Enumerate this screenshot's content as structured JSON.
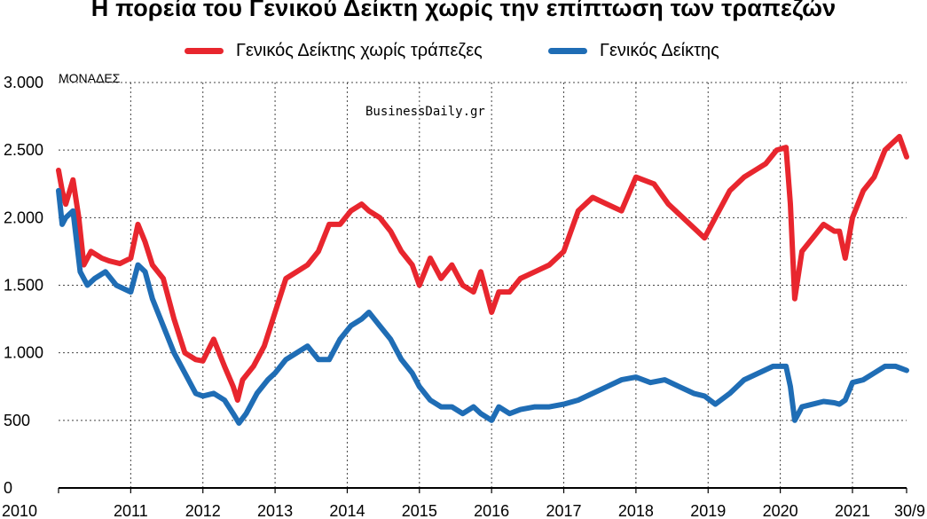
{
  "title": "Η πορεία του Γενικού Δείκτη χωρίς την επίπτωση των τραπεζών",
  "legend": [
    {
      "label": "Γενικός Δείκτης χωρίς τράπεζες",
      "color": "#e8262e"
    },
    {
      "label": "Γενικός Δείκτης",
      "color": "#1f6db5"
    }
  ],
  "watermark": "BusinessDaily.gr",
  "chart_data": {
    "type": "line",
    "title": "Η πορεία του Γενικού Δείκτη χωρίς την επίπτωση των τραπεζών",
    "ylabel": "ΜΟΝΑΔΕΣ",
    "ylim": [
      0,
      3000
    ],
    "yticks": [
      0,
      500,
      1000,
      1500,
      2000,
      2500,
      3000
    ],
    "ytick_labels": [
      "0",
      "500",
      "1.000",
      "1.500",
      "2.000",
      "2.500",
      "3.000"
    ],
    "xlim": [
      2010.0,
      2021.75
    ],
    "xticks": [
      2010,
      2011,
      2012,
      2013,
      2014,
      2015,
      2016,
      2017,
      2018,
      2019,
      2020,
      2021,
      2021.75
    ],
    "xtick_labels": [
      "2010",
      "2011",
      "2012",
      "2013",
      "2014",
      "2015",
      "2016",
      "2017",
      "2018",
      "2019",
      "2020",
      "2021",
      "30/9"
    ],
    "grid": true,
    "legend_position": "top",
    "series": [
      {
        "name": "Γενικός Δείκτης χωρίς τράπεζες",
        "color": "#e8262e",
        "x": [
          2010.0,
          2010.05,
          2010.1,
          2010.2,
          2010.28,
          2010.35,
          2010.45,
          2010.6,
          2010.7,
          2010.85,
          2011.0,
          2011.1,
          2011.2,
          2011.3,
          2011.45,
          2011.6,
          2011.75,
          2011.9,
          2012.0,
          2012.15,
          2012.3,
          2012.42,
          2012.48,
          2012.55,
          2012.7,
          2012.85,
          2013.0,
          2013.15,
          2013.3,
          2013.45,
          2013.6,
          2013.75,
          2013.9,
          2014.05,
          2014.2,
          2014.3,
          2014.45,
          2014.6,
          2014.75,
          2014.9,
          2015.0,
          2015.15,
          2015.3,
          2015.45,
          2015.6,
          2015.75,
          2015.85,
          2016.0,
          2016.1,
          2016.25,
          2016.4,
          2016.6,
          2016.8,
          2017.0,
          2017.2,
          2017.4,
          2017.6,
          2017.8,
          2018.0,
          2018.1,
          2018.25,
          2018.45,
          2018.65,
          2018.85,
          2018.95,
          2019.1,
          2019.3,
          2019.5,
          2019.65,
          2019.8,
          2019.95,
          2020.08,
          2020.14,
          2020.2,
          2020.3,
          2020.45,
          2020.6,
          2020.75,
          2020.82,
          2020.9,
          2021.0,
          2021.15,
          2021.3,
          2021.45,
          2021.55,
          2021.65,
          2021.75
        ],
        "values": [
          2350,
          2200,
          2100,
          2280,
          2000,
          1650,
          1750,
          1700,
          1680,
          1660,
          1700,
          1950,
          1820,
          1650,
          1550,
          1250,
          1000,
          950,
          940,
          1100,
          900,
          750,
          650,
          800,
          900,
          1050,
          1300,
          1550,
          1600,
          1650,
          1750,
          1950,
          1950,
          2050,
          2100,
          2050,
          2000,
          1900,
          1750,
          1650,
          1500,
          1700,
          1550,
          1650,
          1500,
          1450,
          1600,
          1300,
          1450,
          1450,
          1550,
          1600,
          1650,
          1750,
          2050,
          2150,
          2100,
          2050,
          2300,
          2280,
          2250,
          2100,
          2000,
          1900,
          1850,
          2000,
          2200,
          2300,
          2350,
          2400,
          2500,
          2520,
          2100,
          1400,
          1750,
          1850,
          1950,
          1900,
          1900,
          1700,
          2000,
          2200,
          2300,
          2500,
          2550,
          2600,
          2450
        ]
      },
      {
        "name": "Γενικός Δείκτης",
        "color": "#1f6db5",
        "x": [
          2010.0,
          2010.05,
          2010.1,
          2010.2,
          2010.3,
          2010.4,
          2010.5,
          2010.65,
          2010.8,
          2011.0,
          2011.1,
          2011.2,
          2011.3,
          2011.45,
          2011.6,
          2011.75,
          2011.9,
          2012.0,
          2012.15,
          2012.3,
          2012.42,
          2012.5,
          2012.6,
          2012.75,
          2012.9,
          2013.0,
          2013.15,
          2013.3,
          2013.45,
          2013.6,
          2013.75,
          2013.9,
          2014.05,
          2014.2,
          2014.3,
          2014.45,
          2014.6,
          2014.75,
          2014.9,
          2015.0,
          2015.15,
          2015.3,
          2015.45,
          2015.6,
          2015.75,
          2015.85,
          2016.0,
          2016.1,
          2016.25,
          2016.4,
          2016.6,
          2016.8,
          2017.0,
          2017.2,
          2017.4,
          2017.6,
          2017.8,
          2018.0,
          2018.2,
          2018.4,
          2018.6,
          2018.8,
          2018.95,
          2019.1,
          2019.3,
          2019.5,
          2019.7,
          2019.9,
          2020.08,
          2020.14,
          2020.2,
          2020.3,
          2020.45,
          2020.6,
          2020.75,
          2020.82,
          2020.9,
          2021.0,
          2021.15,
          2021.3,
          2021.45,
          2021.6,
          2021.75
        ],
        "values": [
          2200,
          1950,
          2000,
          2050,
          1600,
          1500,
          1550,
          1600,
          1500,
          1450,
          1650,
          1600,
          1400,
          1200,
          1000,
          850,
          700,
          680,
          700,
          650,
          550,
          480,
          550,
          700,
          800,
          850,
          950,
          1000,
          1050,
          950,
          950,
          1100,
          1200,
          1250,
          1300,
          1200,
          1100,
          950,
          850,
          750,
          650,
          600,
          600,
          550,
          600,
          550,
          500,
          600,
          550,
          580,
          600,
          600,
          620,
          650,
          700,
          750,
          800,
          820,
          780,
          800,
          750,
          700,
          680,
          620,
          700,
          800,
          850,
          900,
          900,
          750,
          500,
          600,
          620,
          640,
          630,
          620,
          650,
          780,
          800,
          850,
          900,
          900,
          870
        ]
      }
    ]
  }
}
